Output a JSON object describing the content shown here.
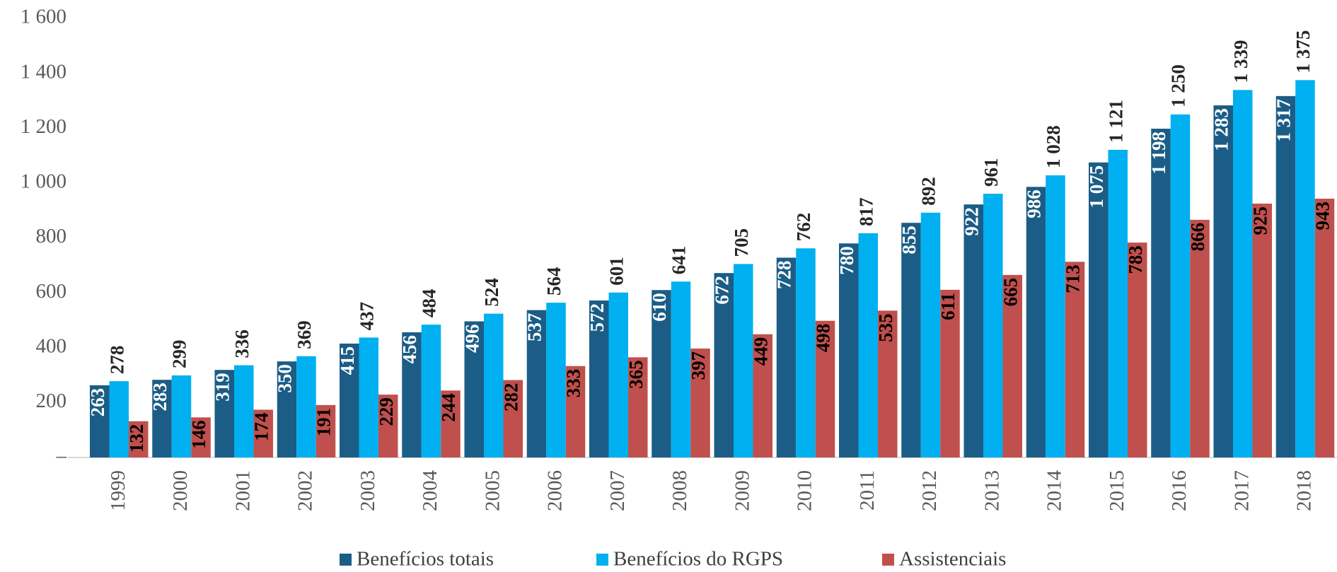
{
  "chart_data": {
    "type": "bar",
    "categories": [
      "1999",
      "2000",
      "2001",
      "2002",
      "2003",
      "2004",
      "2005",
      "2006",
      "2007",
      "2008",
      "2009",
      "2010",
      "2011",
      "2012",
      "2013",
      "2014",
      "2015",
      "2016",
      "2017",
      "2018"
    ],
    "series": [
      {
        "name": "Benefícios totais",
        "color": "#1b5d86",
        "values": [
          263,
          283,
          319,
          350,
          415,
          456,
          496,
          537,
          572,
          610,
          672,
          728,
          780,
          855,
          922,
          986,
          1075,
          1198,
          1283,
          1317
        ],
        "value_labels": [
          "263",
          "283",
          "319",
          "350",
          "415",
          "456",
          "496",
          "537",
          "572",
          "610",
          "672",
          "728",
          "780",
          "855",
          "922",
          "986",
          "1 075",
          "1 198",
          "1 283",
          "1 317"
        ]
      },
      {
        "name": "Benefícios do RGPS",
        "color": "#00b0f0",
        "values": [
          278,
          299,
          336,
          369,
          437,
          484,
          524,
          564,
          601,
          641,
          705,
          762,
          817,
          892,
          961,
          1028,
          1121,
          1250,
          1339,
          1375
        ],
        "value_labels": [
          "278",
          "299",
          "336",
          "369",
          "437",
          "484",
          "524",
          "564",
          "601",
          "641",
          "705",
          "762",
          "817",
          "892",
          "961",
          "1 028",
          "1 121",
          "1 250",
          "1 339",
          "1 375"
        ]
      },
      {
        "name": "Assistenciais",
        "color": "#c0504d",
        "values": [
          132,
          146,
          174,
          191,
          229,
          244,
          282,
          333,
          365,
          397,
          449,
          498,
          535,
          611,
          665,
          713,
          783,
          866,
          925,
          943
        ],
        "value_labels": [
          "132",
          "146",
          "174",
          "191",
          "229",
          "244",
          "282",
          "333",
          "365",
          "397",
          "449",
          "498",
          "535",
          "611",
          "665",
          "713",
          "783",
          "866",
          "925",
          "943"
        ]
      }
    ],
    "ylim": [
      0,
      1600
    ],
    "yticks": [
      {
        "value": 0,
        "label": "–"
      },
      200,
      400,
      600,
      800,
      {
        "value": 1000,
        "label": "1 000"
      },
      {
        "value": 1200,
        "label": "1 200"
      },
      {
        "value": 1400,
        "label": "1 400"
      },
      {
        "value": 1600,
        "label": "1 600"
      }
    ],
    "grid": false
  }
}
